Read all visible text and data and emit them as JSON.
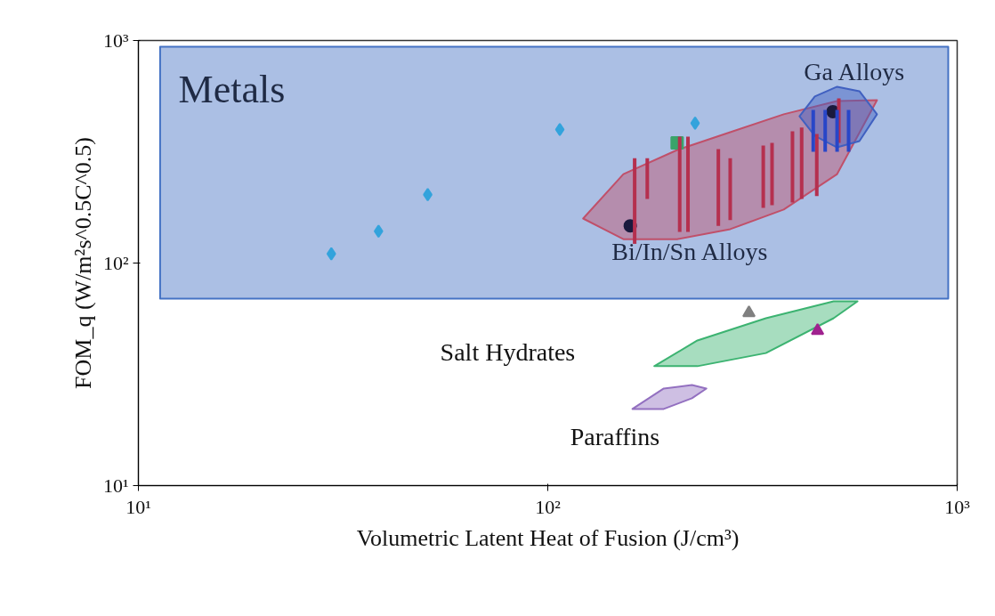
{
  "chart_data": {
    "type": "scatter",
    "xlabel": "Volumetric Latent Heat of Fusion (J/cm³)",
    "ylabel": "FOM_q (W/m²s^0.5C^0.5)",
    "log": "xy",
    "grid": false,
    "xlim": [
      10,
      1000
    ],
    "ylim": [
      10,
      1000
    ],
    "xticks": [
      {
        "value": 10,
        "label": "10¹"
      },
      {
        "value": 100,
        "label": "10²"
      },
      {
        "value": 1000,
        "label": "10³"
      }
    ],
    "yticks": [
      {
        "value": 10,
        "label": "10¹"
      },
      {
        "value": 100,
        "label": "10²"
      },
      {
        "value": 1000,
        "label": "10³"
      }
    ],
    "series": [
      {
        "type": "area",
        "color": "#4472c4",
        "x": [
          11.3,
          951,
          951,
          11.3
        ],
        "values": [
          938,
          938,
          69.2,
          69.2
        ]
      },
      {
        "type": "area",
        "color": "#c0506a",
        "x": [
          122,
          153,
          207,
          279,
          377,
          509,
          637,
          509,
          377,
          279,
          207,
          153
        ],
        "values": [
          158.5,
          251,
          322,
          387,
          466,
          535,
          540,
          251,
          174,
          142,
          128,
          128
        ]
      },
      {
        "type": "area",
        "color": "#4060c0",
        "x": [
          412,
          449,
          509,
          577,
          637,
          577,
          509,
          449
        ],
        "values": [
          457,
          560,
          620,
          592,
          466,
          353,
          331,
          373
        ]
      },
      {
        "type": "area",
        "color": "#3cb371",
        "x": [
          182,
          232,
          341,
          499,
          571,
          499,
          341,
          232
        ],
        "values": [
          34.4,
          44.9,
          56.5,
          67.3,
          67.3,
          56.5,
          39.4,
          34.4
        ]
      },
      {
        "type": "area",
        "color": "#9370c0",
        "x": [
          161,
          192,
          225,
          244,
          225,
          192
        ],
        "values": [
          22.1,
          27.3,
          28.3,
          27.3,
          24.7,
          22.1
        ]
      },
      {
        "type": "bar",
        "color": "#b5304f",
        "x": [
          163,
          175,
          210,
          220,
          261,
          279,
          336,
          353,
          396,
          417,
          454,
          514
        ],
        "base": [
          122,
          194,
          138,
          138,
          147,
          156,
          177,
          182,
          187,
          194,
          200,
          347
        ],
        "values": [
          174,
          102,
          232,
          232,
          178,
          140,
          160,
          165,
          204,
          212,
          180,
          203
        ]
      },
      {
        "type": "bar",
        "color": "#2846c8",
        "x": [
          445,
          476,
          509,
          543
        ],
        "base": [
          316,
          316,
          316,
          316
        ],
        "values": [
          172,
          172,
          172,
          172
        ]
      },
      {
        "marker": "diamond",
        "color": "#33a3dc",
        "x": [
          29.6,
          38.6,
          50.9,
          107,
          229
        ],
        "values": [
          110,
          139,
          203,
          398,
          425
        ]
      },
      {
        "marker": "circle",
        "color": "#1a1a3e",
        "x": [
          159,
          497
        ],
        "values": [
          147,
          479
        ]
      },
      {
        "marker": "square",
        "color": "#3aa36a",
        "x": [
          207
        ],
        "values": [
          347
        ]
      },
      {
        "marker": "triangle",
        "color": "#808080",
        "x": [
          310
        ],
        "values": [
          59.7
        ]
      },
      {
        "marker": "triangle",
        "color": "#a0228f",
        "x": [
          456
        ],
        "values": [
          49.7
        ]
      }
    ],
    "annotations": [
      "Metals",
      "Ga Alloys",
      "Bi/In/Sn Alloys",
      "Salt Hydrates",
      "Paraffins"
    ]
  }
}
